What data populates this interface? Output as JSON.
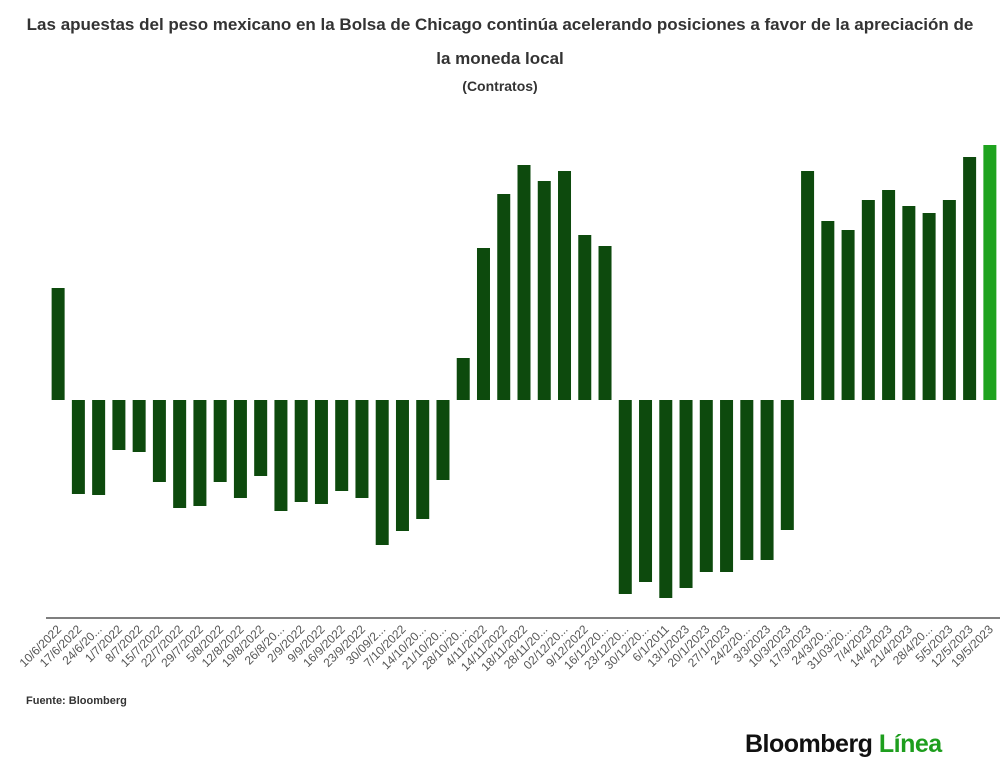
{
  "chart_data": {
    "type": "bar",
    "title": "Las apuestas del peso mexicano en la Bolsa de Chicago continúa acelerando posiciones a favor de la apreciación de la moneda local",
    "subtitle": "(Contratos)",
    "source": "Fuente: Bloomberg",
    "brand": "Bloomberg",
    "brand_suffix": "Línea",
    "categories": [
      "10/6/2022",
      "17/6/2022",
      "24/6/20...",
      "1/7/2022",
      "8/7/2022",
      "15/7/2022",
      "22/7/2022",
      "29/7/2022",
      "5/8/2022",
      "12/8/2022",
      "19/8/2022",
      "26/8/20...",
      "2/9/2022",
      "9/9/2022",
      "16/9/2022",
      "23/9/2022",
      "30/09/2...",
      "7/10/2022",
      "14/10/20...",
      "21/10/20...",
      "28/10/20...",
      "4/11/2022",
      "14/11/2022",
      "18/11/2022",
      "28/11/20...",
      "02/12/20...",
      "9/12/2022",
      "16/12/20...",
      "23/12/20...",
      "30/12/20...",
      "6/1/2011",
      "13/1/2023",
      "20/1/2023",
      "27/1/2023",
      "24/2/20...",
      "3/3/2023",
      "10/3/2023",
      "17/3/2023",
      "24/3/20...",
      "31/03/20...",
      "7/4/2023",
      "14/4/2023",
      "21/4/2023",
      "28/4/20...",
      "5/5/2023",
      "12/5/2023",
      "19/5/2023"
    ],
    "values": [
      112,
      -94,
      -95,
      -50,
      -52,
      -82,
      -108,
      -106,
      -82,
      -98,
      -76,
      -111,
      -102,
      -104,
      -91,
      -98,
      -145,
      -131,
      -119,
      -80,
      42,
      152,
      206,
      235,
      219,
      229,
      165,
      154,
      -194,
      -182,
      -198,
      -188,
      -172,
      -172,
      -160,
      -160,
      -130,
      229,
      179,
      170,
      200,
      210,
      194,
      187,
      200,
      243,
      255
    ],
    "color": "#0d4a0d",
    "last_color": "#1ea31e",
    "ylim": [
      -218,
      260
    ]
  }
}
